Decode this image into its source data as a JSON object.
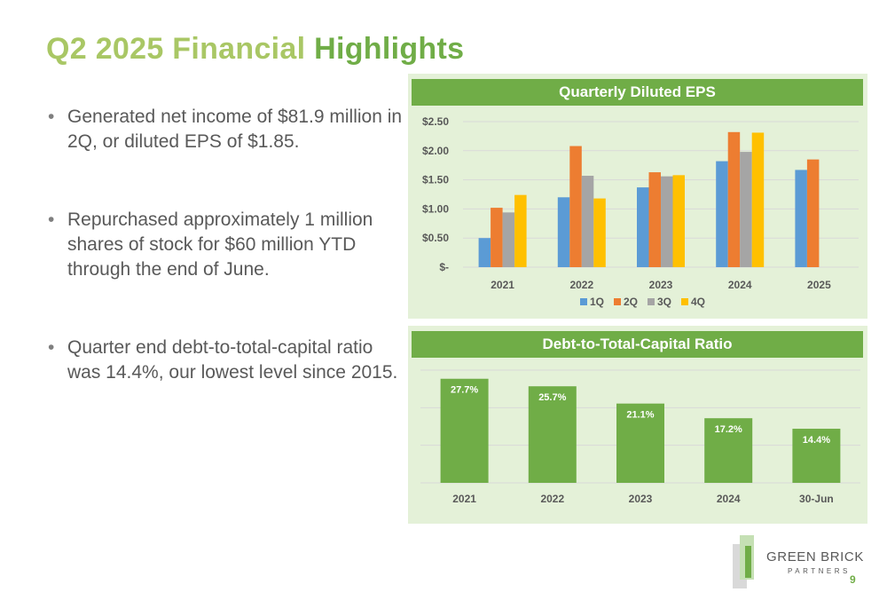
{
  "slide": {
    "title_part1": "Q2 2025 Financial",
    "title_part2": "Highlights",
    "page_number": "9"
  },
  "bullets": [
    "Generated net income of $81.9 million in 2Q, or diluted EPS of $1.85.",
    "Repurchased approximately 1 million shares of stock for $60 million YTD through the end of June.",
    "Quarter end debt-to-total-capital ratio was 14.4%, our lowest level since 2015."
  ],
  "bullet_glyph": "•",
  "logo": {
    "name": "GREEN BRICK",
    "sub": "PARTNERS"
  },
  "colors": {
    "accent": "#70ad47",
    "title_light": "#a9c765",
    "panel_bg": "#e4f1d8",
    "q1": "#5b9bd5",
    "q2": "#ed7d31",
    "q3": "#a5a5a5",
    "q4": "#ffc000"
  },
  "chart_data": [
    {
      "type": "bar",
      "title": "Quarterly Diluted EPS",
      "categories": [
        "2021",
        "2022",
        "2023",
        "2024",
        "2025"
      ],
      "series": [
        {
          "name": "1Q",
          "values": [
            0.5,
            1.2,
            1.37,
            1.82,
            1.67
          ]
        },
        {
          "name": "2Q",
          "values": [
            1.02,
            2.08,
            1.63,
            2.32,
            1.85
          ]
        },
        {
          "name": "3Q",
          "values": [
            0.94,
            1.57,
            1.56,
            1.98,
            null
          ]
        },
        {
          "name": "4Q",
          "values": [
            1.24,
            1.18,
            1.58,
            2.31,
            null
          ]
        }
      ],
      "y_ticks": [
        "$-",
        "$0.50",
        "$1.00",
        "$1.50",
        "$2.00",
        "$2.50"
      ],
      "ylim": [
        0,
        2.5
      ],
      "grid": true,
      "legend": "bottom"
    },
    {
      "type": "bar",
      "title": "Debt-to-Total-Capital Ratio",
      "categories": [
        "2021",
        "2022",
        "2023",
        "2024",
        "30-Jun"
      ],
      "values": [
        27.7,
        25.7,
        21.1,
        17.2,
        14.4
      ],
      "data_labels": [
        "27.7%",
        "25.7%",
        "21.1%",
        "17.2%",
        "14.4%"
      ],
      "ylim": [
        0,
        30
      ],
      "grid": true,
      "legend": "none"
    }
  ]
}
